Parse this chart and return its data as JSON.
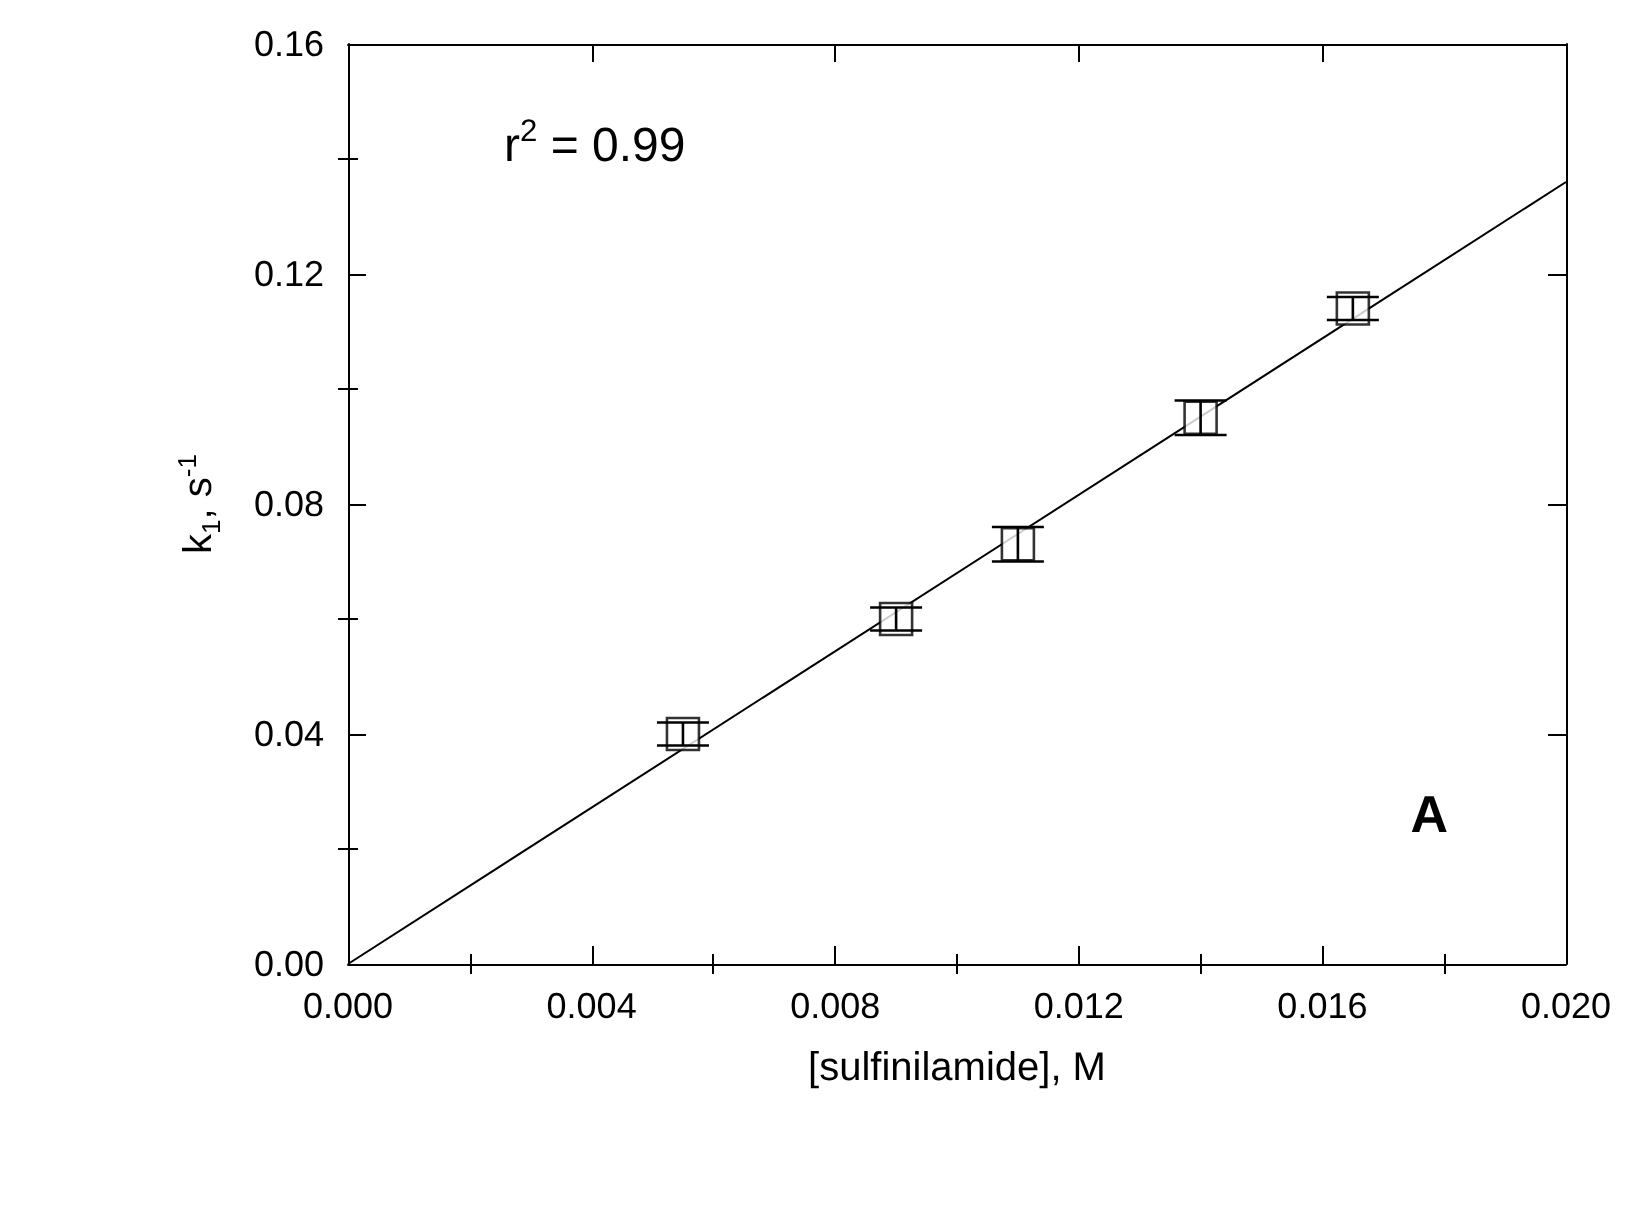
{
  "chart_data": {
    "type": "scatter",
    "xlabel": "[sulfinilamide], M",
    "ylabel": "k$_{1}$, s$^{-1}$",
    "annotations": [
      "r$^{2}$ = 0.99",
      "A"
    ],
    "series": [
      {
        "color": "#000000",
        "marker": "square",
        "x": [
          0.0055,
          0.009,
          0.011,
          0.014,
          0.0165
        ],
        "values": [
          0.04,
          0.06,
          0.073,
          0.095,
          0.114
        ],
        "errors": [
          0.002,
          0.002,
          0.003,
          0.003,
          0.002
        ]
      },
      {
        "type": "line",
        "color": "#000000",
        "marker": "none",
        "line_style": "solid",
        "x": [
          0,
          0.02
        ],
        "values": [
          0,
          0.136
        ]
      }
    ],
    "xlim": [
      0,
      0.02
    ],
    "ylim": [
      0,
      0.16
    ],
    "xticks": [
      {
        "value": 0,
        "label": "0.000"
      },
      {
        "value": 0.004,
        "label": "0.004"
      },
      {
        "value": 0.008,
        "label": "0.008"
      },
      {
        "value": 0.012,
        "label": "0.012"
      },
      {
        "value": 0.016,
        "label": "0.016"
      },
      {
        "value": 0.02,
        "label": "0.020"
      }
    ],
    "yticks": [
      {
        "value": 0,
        "label": "0.00"
      },
      {
        "value": 0.04,
        "label": "0.04"
      },
      {
        "value": 0.08,
        "label": "0.08"
      },
      {
        "value": 0.12,
        "label": "0.12"
      },
      {
        "value": 0.16,
        "label": "0.16"
      }
    ],
    "grid": false
  }
}
